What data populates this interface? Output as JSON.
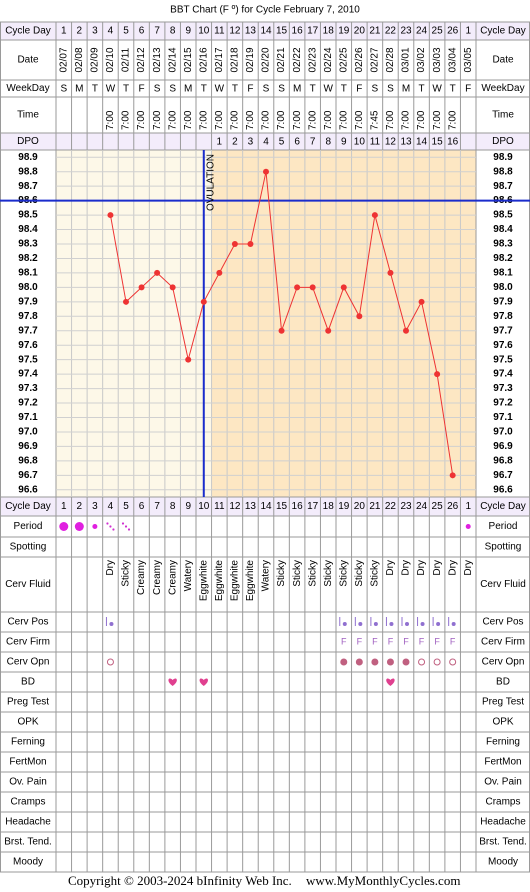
{
  "chart_data": {
    "type": "line",
    "title": "BBT Chart (F º) for Cycle February 7, 2010",
    "row_labels": {
      "cycle_day": "Cycle Day",
      "date": "Date",
      "weekday": "WeekDay",
      "time": "Time",
      "dpo": "DPO"
    },
    "categories": [
      1,
      2,
      3,
      4,
      5,
      6,
      7,
      8,
      9,
      10,
      11,
      12,
      13,
      14,
      15,
      16,
      17,
      18,
      19,
      20,
      21,
      22,
      23,
      24,
      25,
      26,
      1
    ],
    "dates": [
      "02/07",
      "02/08",
      "02/09",
      "02/10",
      "02/11",
      "02/12",
      "02/13",
      "02/14",
      "02/15",
      "02/16",
      "02/17",
      "02/18",
      "02/19",
      "02/20",
      "02/21",
      "02/22",
      "02/23",
      "02/24",
      "02/25",
      "02/26",
      "02/27",
      "02/28",
      "03/01",
      "03/02",
      "03/03",
      "03/04",
      "03/05"
    ],
    "weekdays": [
      "S",
      "M",
      "T",
      "W",
      "T",
      "F",
      "S",
      "S",
      "M",
      "T",
      "W",
      "T",
      "F",
      "S",
      "S",
      "M",
      "T",
      "W",
      "T",
      "F",
      "S",
      "S",
      "M",
      "T",
      "W",
      "T",
      "F"
    ],
    "times": [
      null,
      null,
      null,
      "7:00",
      "7:00",
      "7:00",
      "7:00",
      "7:00",
      "7:00",
      "7:00",
      "7:00",
      "7:00",
      "7:00",
      "7:00",
      "7:00",
      "7:00",
      "7:00",
      "7:00",
      "7:00",
      "7:00",
      "7:45",
      "7:00",
      "7:00",
      "7:00",
      "7:00",
      "7:00",
      null
    ],
    "dpo": [
      null,
      null,
      null,
      null,
      null,
      null,
      null,
      null,
      null,
      null,
      1,
      2,
      3,
      4,
      5,
      6,
      7,
      8,
      9,
      10,
      11,
      12,
      13,
      14,
      15,
      16,
      null
    ],
    "values": [
      null,
      null,
      null,
      98.5,
      97.9,
      98.0,
      98.1,
      98.0,
      97.5,
      97.9,
      98.1,
      98.3,
      98.3,
      98.8,
      97.7,
      98.0,
      98.0,
      97.7,
      98.0,
      97.8,
      98.5,
      98.1,
      97.7,
      97.9,
      97.4,
      96.7,
      null
    ],
    "color": "#ee3333",
    "ylim": [
      96.55,
      98.95
    ],
    "yticks": [
      98.9,
      98.8,
      98.7,
      98.6,
      98.5,
      98.4,
      98.3,
      98.2,
      98.1,
      {
        "value": 98,
        "label": "98.0"
      },
      97.9,
      97.8,
      97.7,
      97.6,
      97.5,
      97.4,
      97.3,
      97.2,
      97.1,
      {
        "value": 97,
        "label": "97.0"
      },
      96.9,
      96.8,
      96.7,
      96.6
    ],
    "grid": true,
    "coverline": 98.6,
    "ovulation_day": 10,
    "ovulation_label": "OVULATION",
    "rows": [
      {
        "label": "Period",
        "kind": "period",
        "values": [
          "heavy",
          "heavy",
          "medium",
          "spotting",
          "spotting",
          null,
          null,
          null,
          null,
          null,
          null,
          null,
          null,
          null,
          null,
          null,
          null,
          null,
          null,
          null,
          null,
          null,
          null,
          null,
          null,
          null,
          "medium"
        ]
      },
      {
        "label": "Spotting"
      },
      {
        "label": "Cerv Fluid",
        "kind": "text",
        "values": [
          null,
          null,
          null,
          "Dry",
          "Sticky",
          "Creamy",
          "Creamy",
          "Creamy",
          "Watery",
          "Eggwhite",
          "Eggwhite",
          "Eggwhite",
          "Eggwhite",
          "Watery",
          "Sticky",
          "Sticky",
          "Sticky",
          "Sticky",
          "Sticky",
          "Sticky",
          "Sticky",
          "Dry",
          "Dry",
          "Dry",
          "Dry",
          "Dry",
          "Dry"
        ]
      },
      {
        "label": "Cerv Pos",
        "kind": "pos",
        "values": [
          null,
          null,
          null,
          1,
          null,
          null,
          null,
          null,
          null,
          null,
          null,
          null,
          null,
          null,
          null,
          null,
          null,
          null,
          1,
          1,
          1,
          1,
          1,
          1,
          1,
          1,
          null
        ]
      },
      {
        "label": "Cerv Firm",
        "kind": "letter",
        "values": [
          null,
          null,
          null,
          null,
          null,
          null,
          null,
          null,
          null,
          null,
          null,
          null,
          null,
          null,
          null,
          null,
          null,
          null,
          "F",
          "F",
          "F",
          "F",
          "F",
          "F",
          "F",
          "F",
          null
        ]
      },
      {
        "label": "Cerv Opn",
        "kind": "opn",
        "values": [
          null,
          null,
          null,
          "open",
          null,
          null,
          null,
          null,
          null,
          null,
          null,
          null,
          null,
          null,
          null,
          null,
          null,
          null,
          "closed",
          "closed",
          "closed",
          "closed",
          "closed",
          "open",
          "open",
          "open",
          null
        ]
      },
      {
        "label": "BD",
        "kind": "heart",
        "values": [
          null,
          null,
          null,
          null,
          null,
          null,
          null,
          1,
          null,
          1,
          null,
          null,
          null,
          null,
          null,
          null,
          null,
          null,
          null,
          null,
          null,
          1,
          null,
          null,
          null,
          null,
          null
        ]
      },
      {
        "label": "Preg Test"
      },
      {
        "label": "OPK"
      },
      {
        "label": "Ferning"
      },
      {
        "label": "FertMon"
      },
      {
        "label": "Ov. Pain"
      },
      {
        "label": "Cramps"
      },
      {
        "label": "Headache"
      },
      {
        "label": "Brst. Tend."
      },
      {
        "label": "Moody"
      }
    ],
    "copyright": "Copyright © 2003-2024 bInfinity Web Inc.",
    "website": "www.MyMonthlyCycles.com"
  }
}
